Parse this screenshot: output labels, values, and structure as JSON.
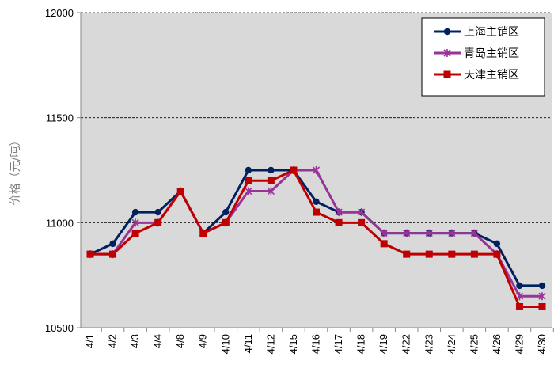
{
  "chart_data": {
    "type": "line",
    "ylabel": "价格（元/吨）",
    "ylim": [
      10500,
      12000
    ],
    "yticks": [
      10500,
      11000,
      11500,
      12000
    ],
    "grid": "horizontal dashed",
    "legend_position": "top-right",
    "categories": [
      "4/1",
      "4/2",
      "4/3",
      "4/4",
      "4/8",
      "4/9",
      "4/10",
      "4/11",
      "4/12",
      "4/15",
      "4/16",
      "4/17",
      "4/18",
      "4/19",
      "4/22",
      "4/23",
      "4/24",
      "4/25",
      "4/26",
      "4/29",
      "4/30"
    ],
    "series": [
      {
        "name": "上海主销区",
        "color": "#002060",
        "marker": "circle",
        "values": [
          10850,
          10900,
          11050,
          11050,
          11150,
          10950,
          11050,
          11250,
          11250,
          11250,
          11100,
          11050,
          11050,
          10950,
          10950,
          10950,
          10950,
          10950,
          10900,
          10700,
          10700
        ]
      },
      {
        "name": "青岛主销区",
        "color": "#993399",
        "marker": "star",
        "values": [
          10850,
          10850,
          11000,
          11000,
          11150,
          10950,
          11000,
          11150,
          11150,
          11250,
          11250,
          11050,
          11050,
          10950,
          10950,
          10950,
          10950,
          10950,
          10850,
          10650,
          10650
        ]
      },
      {
        "name": "天津主销区",
        "color": "#C00000",
        "marker": "square",
        "values": [
          10850,
          10850,
          10950,
          11000,
          11150,
          10950,
          11000,
          11200,
          11200,
          11250,
          11050,
          11000,
          11000,
          10900,
          10850,
          10850,
          10850,
          10850,
          10850,
          10600,
          10600
        ]
      }
    ]
  }
}
